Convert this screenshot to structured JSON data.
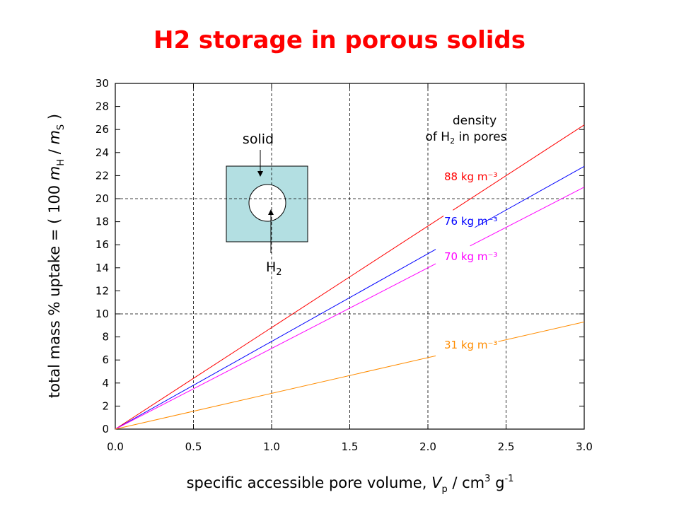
{
  "chart_data": {
    "type": "line",
    "title": "H2 storage in porous solids",
    "xlabel": [
      "specific accessible pore volume, ",
      "V",
      "p",
      " / cm",
      "3",
      " g",
      "-1"
    ],
    "ylabel": [
      "total mass % uptake = ( 100 ",
      "m",
      "H",
      " / ",
      "m",
      "S",
      " )"
    ],
    "legend_title": [
      "density",
      "of H",
      "2",
      " in pores"
    ],
    "inset_labels": {
      "solid": "solid",
      "gas": "H",
      "gas_sub": "2"
    },
    "xlim": [
      0,
      3
    ],
    "ylim": [
      0,
      30
    ],
    "xticks": [
      {
        "value": 0,
        "label": "0.0"
      },
      {
        "value": 0.5,
        "label": "0.5"
      },
      {
        "value": 1,
        "label": "1.0"
      },
      {
        "value": 1.5,
        "label": "1.5"
      },
      {
        "value": 2,
        "label": "2.0"
      },
      {
        "value": 2.5,
        "label": "2.5"
      },
      {
        "value": 3,
        "label": "3.0"
      }
    ],
    "yticks": [
      0,
      2,
      4,
      6,
      8,
      10,
      12,
      14,
      16,
      18,
      20,
      22,
      24,
      26,
      28,
      30
    ],
    "xgrid": [
      0.5,
      1,
      1.5,
      2,
      2.5
    ],
    "ygrid": [
      10,
      20
    ],
    "series": [
      {
        "name": "88 kg m⁻³",
        "color": "#ff0000",
        "x": [
          0,
          2.1,
          2.13,
          2.16,
          3
        ],
        "values": [
          0,
          18.5,
          null,
          19.0,
          26.4
        ]
      },
      {
        "name": "76 kg m⁻³",
        "color": "#0000ff",
        "x": [
          0,
          2.05,
          2.1,
          2.3,
          3
        ],
        "values": [
          0,
          15.6,
          null,
          17.5,
          22.8
        ]
      },
      {
        "name": "70 kg m⁻³",
        "color": "#ff00ff",
        "x": [
          0,
          2.05,
          2.1,
          2.27,
          3
        ],
        "values": [
          0,
          14.35,
          null,
          15.9,
          21.0
        ]
      },
      {
        "name": "31 kg m⁻³",
        "color": "#ff8c00",
        "x": [
          0,
          2.05,
          2.1,
          2.45,
          3
        ],
        "values": [
          0,
          6.36,
          null,
          7.6,
          9.3
        ]
      }
    ]
  }
}
